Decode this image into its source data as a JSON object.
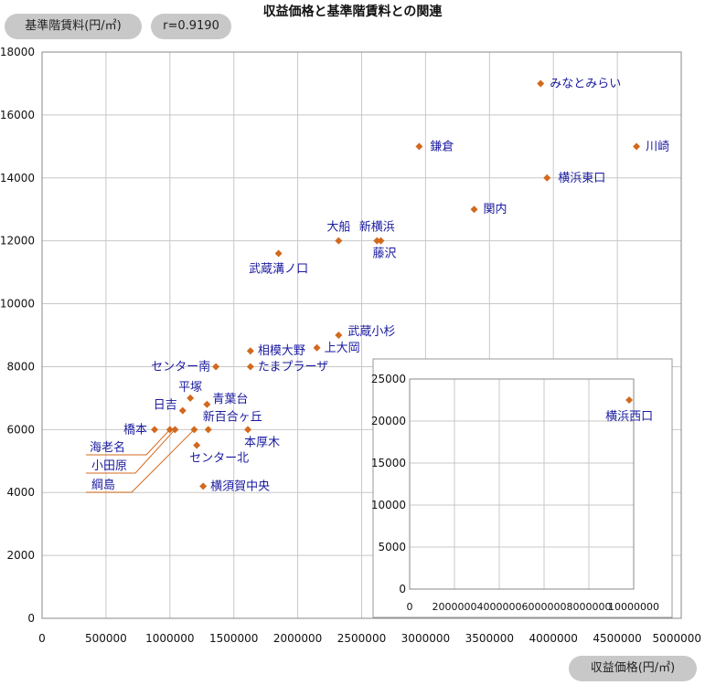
{
  "chart_data": {
    "type": "scatter",
    "title": "収益価格と基準階賃料との関連",
    "ylabel": "基準階賃料(円/㎡)",
    "xlabel": "収益価格(円/㎡)",
    "correlation": "r=0.9190",
    "xlim": [
      0,
      5000000
    ],
    "ylim": [
      0,
      18000
    ],
    "x_ticks": [
      "0",
      "500000",
      "1000000",
      "1500000",
      "2000000",
      "2500000",
      "3000000",
      "3500000",
      "4000000",
      "4500000",
      "5000000"
    ],
    "y_ticks": [
      "0",
      "2000",
      "4000",
      "6000",
      "8000",
      "10000",
      "12000",
      "14000",
      "16000",
      "18000"
    ],
    "points": [
      {
        "name": "みなとみらい",
        "x": 3900000,
        "y": 17000
      },
      {
        "name": "川崎",
        "x": 4650000,
        "y": 15000
      },
      {
        "name": "鎌倉",
        "x": 2950000,
        "y": 15000
      },
      {
        "name": "横浜東口",
        "x": 3950000,
        "y": 14000
      },
      {
        "name": "関内",
        "x": 3380000,
        "y": 13000
      },
      {
        "name": "大船",
        "x": 2320000,
        "y": 12000
      },
      {
        "name": "新横浜",
        "x": 2620000,
        "y": 12000
      },
      {
        "name": "藤沢",
        "x": 2650000,
        "y": 12000
      },
      {
        "name": "武蔵溝ノ口",
        "x": 1850000,
        "y": 11600
      },
      {
        "name": "武蔵小杉",
        "x": 2320000,
        "y": 9000
      },
      {
        "name": "上大岡",
        "x": 2150000,
        "y": 8600
      },
      {
        "name": "相模大野",
        "x": 1630000,
        "y": 8500
      },
      {
        "name": "たまプラーザ",
        "x": 1630000,
        "y": 8000
      },
      {
        "name": "センター南",
        "x": 1360000,
        "y": 8000
      },
      {
        "name": "平塚",
        "x": 1160000,
        "y": 7000
      },
      {
        "name": "青葉台",
        "x": 1290000,
        "y": 6800
      },
      {
        "name": "日吉",
        "x": 1100000,
        "y": 6600
      },
      {
        "name": "新百合ヶ丘",
        "x": 1300000,
        "y": 6000
      },
      {
        "name": "本厚木",
        "x": 1610000,
        "y": 6000
      },
      {
        "name": "橋本",
        "x": 880000,
        "y": 6000
      },
      {
        "name": "海老名",
        "x": 1000000,
        "y": 6000
      },
      {
        "name": "小田原",
        "x": 1040000,
        "y": 6000
      },
      {
        "name": "綱島",
        "x": 1190000,
        "y": 6000
      },
      {
        "name": "センター北",
        "x": 1210000,
        "y": 5500
      },
      {
        "name": "横須賀中央",
        "x": 1260000,
        "y": 4200
      }
    ],
    "inset": {
      "xlim": [
        0,
        10000000
      ],
      "ylim": [
        0,
        25000
      ],
      "x_ticks": [
        "0",
        "2000000",
        "4000000",
        "6000000",
        "8000000",
        "10000000"
      ],
      "y_ticks": [
        "0",
        "5000",
        "10000",
        "15000",
        "20000",
        "25000"
      ],
      "points": [
        {
          "name": "横浜西口",
          "x": 9800000,
          "y": 22500
        }
      ]
    },
    "colors": {
      "point": "#d2691e",
      "label": "#1a1aa0",
      "grid": "#c8c8c8",
      "leader": "#d2691e"
    }
  }
}
